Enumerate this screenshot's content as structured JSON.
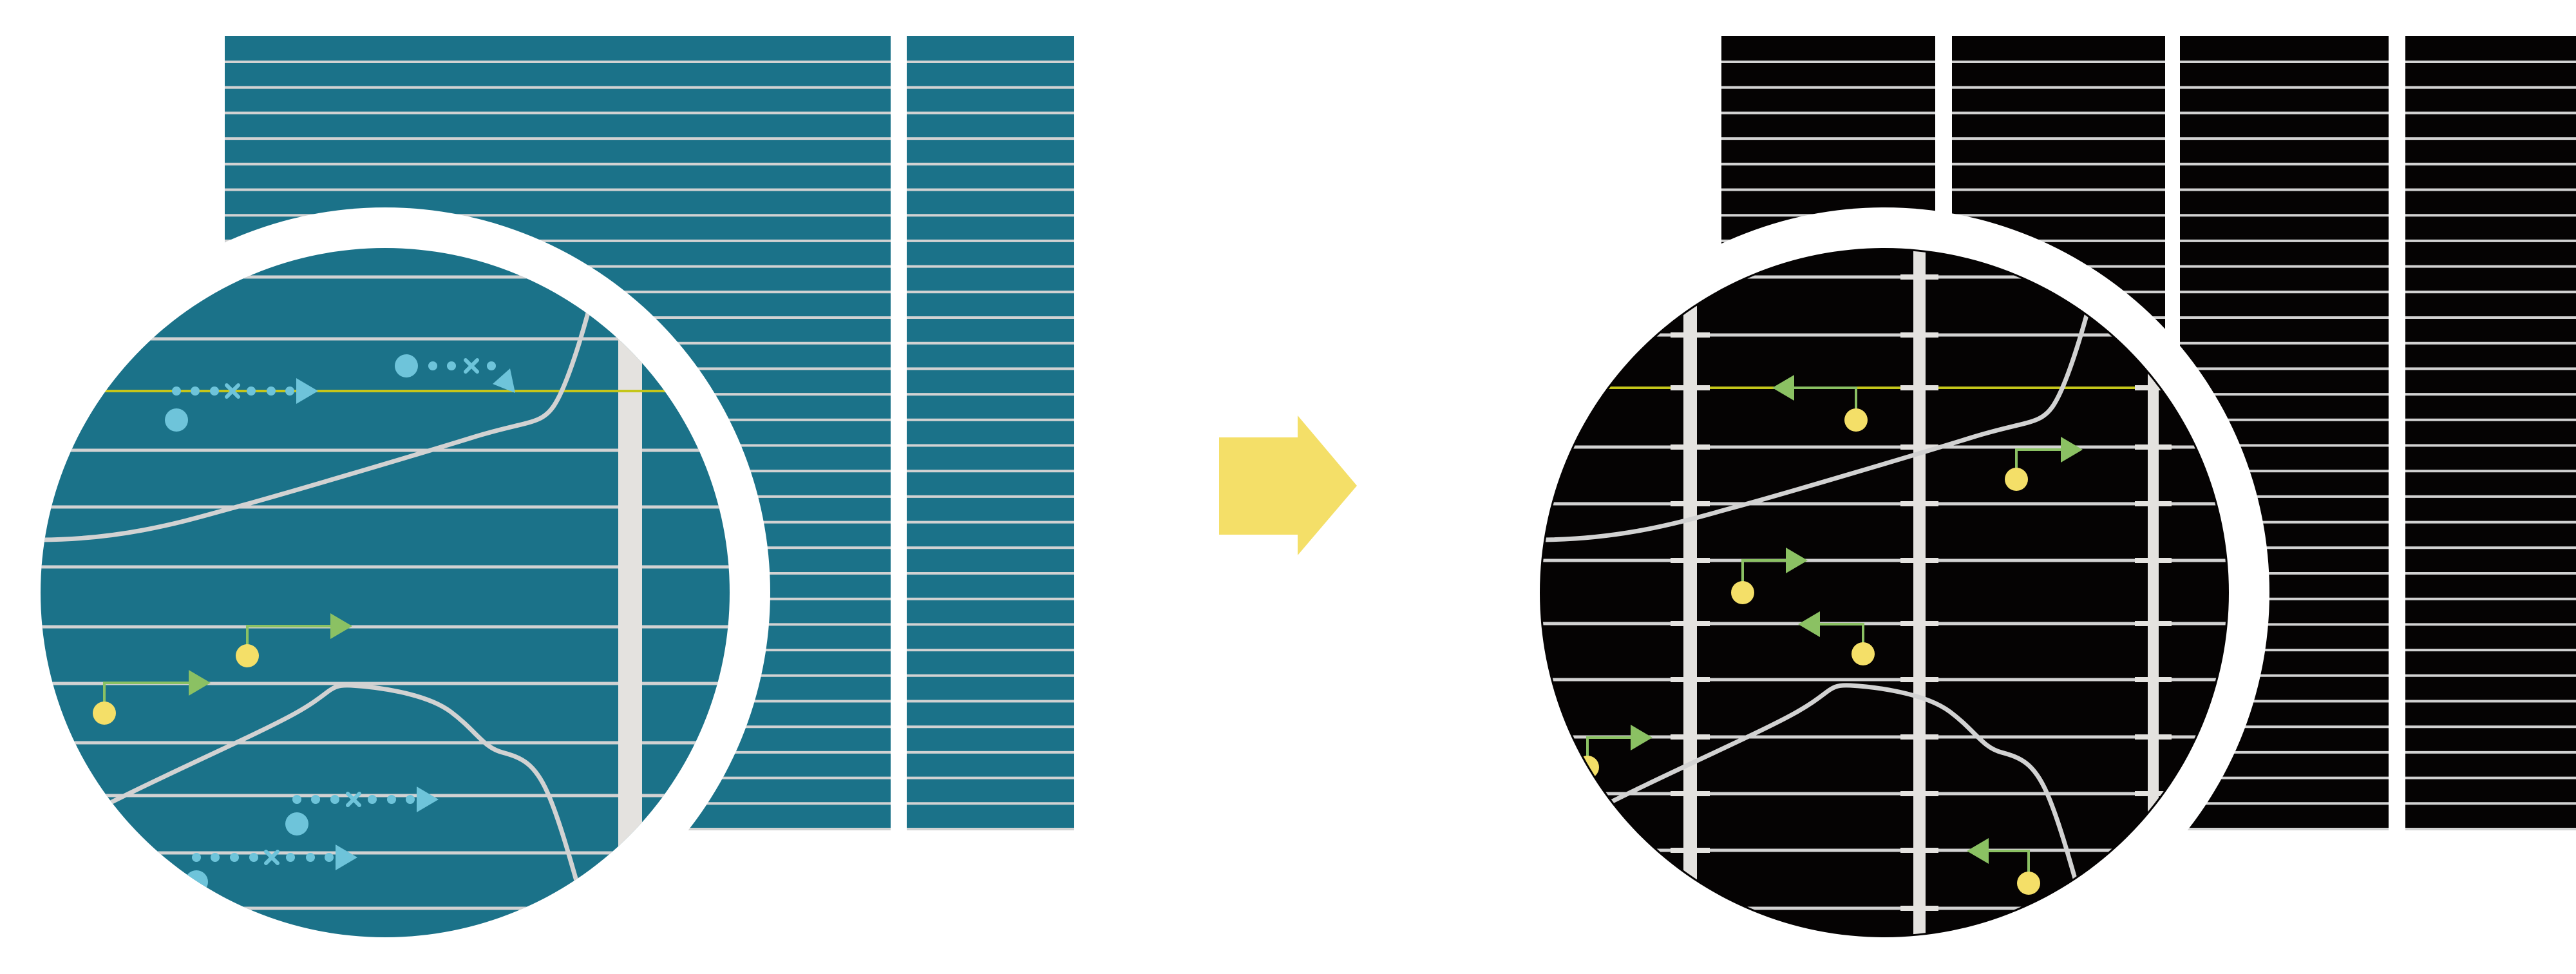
{
  "colors": {
    "teal_background": "#1b7289",
    "black_background": "#050303",
    "grid_line": "#d2d2d2",
    "light_bar": "#e4e2df",
    "highlight_line": "#c5c61a",
    "blue_marker": "#6ec4da",
    "green_arrow": "#8bc163",
    "yellow_dot": "#f4df68",
    "transition_arrow": "#f4df68"
  },
  "panels": {
    "left": {
      "description_icon": "teal-striped-grid-with-magnifier"
    },
    "right": {
      "description_icon": "black-striped-grid-with-magnifier"
    }
  },
  "icons": [
    "magnifier-circle-icon",
    "transition-arrow-icon",
    "dotted-arrow-icon",
    "green-arrow-icon"
  ]
}
